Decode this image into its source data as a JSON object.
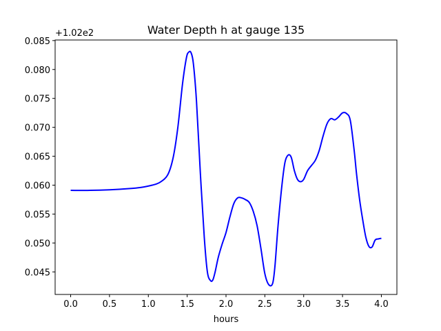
{
  "chart_data": {
    "type": "line",
    "title": "Water Depth h at gauge 135",
    "xlabel": "hours",
    "ylabel": "",
    "y_offset_label": "+1.02e2",
    "xlim": [
      -0.2,
      4.2
    ],
    "ylim": [
      0.0411,
      0.0851
    ],
    "x_ticks": [
      0.0,
      0.5,
      1.0,
      1.5,
      2.0,
      2.5,
      3.0,
      3.5,
      4.0
    ],
    "x_tick_labels": [
      "0.0",
      "0.5",
      "1.0",
      "1.5",
      "2.0",
      "2.5",
      "3.0",
      "3.5",
      "4.0"
    ],
    "y_ticks": [
      0.045,
      0.05,
      0.055,
      0.06,
      0.065,
      0.07,
      0.075,
      0.08,
      0.085
    ],
    "y_tick_labels": [
      "0.045",
      "0.050",
      "0.055",
      "0.060",
      "0.065",
      "0.070",
      "0.075",
      "0.080",
      "0.085"
    ],
    "grid": false,
    "series": [
      {
        "color": "#0000ff",
        "x": [
          0.0,
          0.25,
          0.5,
          0.75,
          0.9,
          1.05,
          1.15,
          1.25,
          1.32,
          1.38,
          1.44,
          1.49,
          1.52,
          1.55,
          1.58,
          1.62,
          1.67,
          1.72,
          1.76,
          1.8,
          1.83,
          1.86,
          1.9,
          1.95,
          2.0,
          2.05,
          2.1,
          2.15,
          2.2,
          2.25,
          2.3,
          2.35,
          2.4,
          2.45,
          2.5,
          2.55,
          2.6,
          2.63,
          2.67,
          2.72,
          2.76,
          2.8,
          2.84,
          2.88,
          2.92,
          2.96,
          3.0,
          3.05,
          3.1,
          3.15,
          3.2,
          3.25,
          3.3,
          3.35,
          3.4,
          3.45,
          3.5,
          3.55,
          3.6,
          3.65,
          3.68,
          3.72,
          3.76,
          3.8,
          3.84,
          3.88,
          3.92,
          3.96,
          4.0
        ],
        "y": [
          0.0591,
          0.0591,
          0.0592,
          0.0594,
          0.0596,
          0.06,
          0.0605,
          0.0618,
          0.0648,
          0.07,
          0.0775,
          0.082,
          0.083,
          0.0829,
          0.081,
          0.0745,
          0.062,
          0.051,
          0.045,
          0.0435,
          0.0436,
          0.045,
          0.0475,
          0.0498,
          0.0518,
          0.0545,
          0.0568,
          0.0578,
          0.0578,
          0.0575,
          0.057,
          0.0555,
          0.053,
          0.049,
          0.0447,
          0.0428,
          0.043,
          0.046,
          0.053,
          0.06,
          0.064,
          0.0652,
          0.0648,
          0.0625,
          0.061,
          0.0606,
          0.061,
          0.0625,
          0.0634,
          0.0643,
          0.066,
          0.0685,
          0.0706,
          0.0715,
          0.0713,
          0.0718,
          0.0725,
          0.0724,
          0.0712,
          0.066,
          0.062,
          0.0575,
          0.054,
          0.051,
          0.0494,
          0.0493,
          0.0505,
          0.0507,
          0.0508
        ]
      }
    ]
  }
}
